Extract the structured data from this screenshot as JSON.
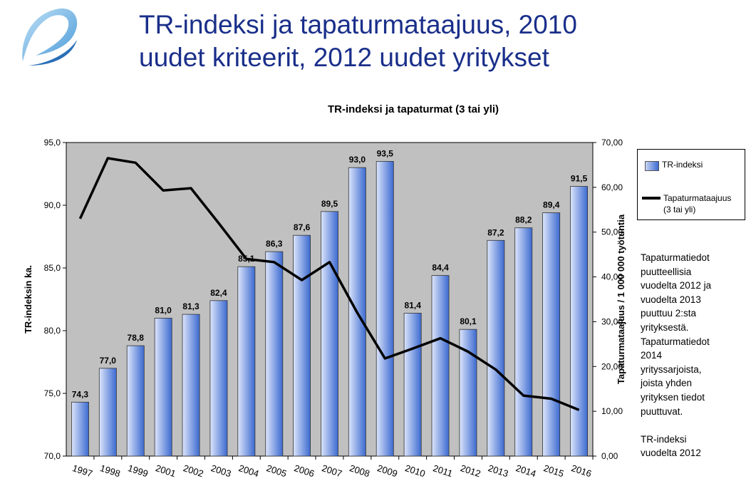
{
  "slide": {
    "title_line1": "TR-indeksi ja tapaturmataajuus, 2010",
    "title_line2": "uudet kriteerit, 2012 uudet yritykset",
    "note": "Tapaturmatiedot\npuutteellisia\nvuodelta  2012 ja\nvuodelta  2013\npuuttuu  2:sta\nyrityksestä.\nTapaturmatiedot\n2014\nyrityssarjoista,\njoista yhden\nyrityksen tiedot\npuuttuvat.\n\nTR-indeksi\nvuodelta  2012"
  },
  "legend": {
    "bar_label": "TR-indeksi",
    "line_label_1": "Tapaturmataajuus",
    "line_label_2": "(3 tai yli)"
  },
  "colors": {
    "title": "#1a2f8a",
    "plot_bg": "#c0c0c0",
    "bar_light": "#dce5fb",
    "bar_dark": "#3c6ad0",
    "line": "#000000"
  },
  "chart_data": {
    "type": "bar",
    "title": "TR-indeksi ja tapaturmat (3 tai yli)",
    "ylabel": "TR-indeksin ka.",
    "y2label": "Tapaturmataajuus / 1 000 000 työtuntia",
    "ylim": [
      70,
      95
    ],
    "y2lim": [
      0,
      70
    ],
    "yticks": [
      "70,0",
      "75,0",
      "80,0",
      "85,0",
      "90,0",
      "95,0"
    ],
    "y2ticks": [
      "0,00",
      "10,00",
      "20,00",
      "30,00",
      "40,00",
      "50,00",
      "60,00",
      "70,00"
    ],
    "categories": [
      "1997",
      "1998",
      "1999",
      "2001",
      "2002",
      "2003",
      "2004",
      "2005",
      "2006",
      "2007",
      "2008",
      "2009",
      "2010",
      "2011",
      "2012",
      "2013",
      "2014",
      "2015",
      "2016"
    ],
    "series": [
      {
        "name": "TR-indeksi",
        "type": "bar",
        "axis": "left",
        "values": [
          74.3,
          77.0,
          78.8,
          81.0,
          81.3,
          82.4,
          85.1,
          86.3,
          87.6,
          89.5,
          93.0,
          93.5,
          81.4,
          84.4,
          80.1,
          87.2,
          88.2,
          89.4,
          91.5
        ],
        "labels": [
          "74,3",
          "77,0",
          "78,8",
          "81,0",
          "81,3",
          "82,4",
          "85,1",
          "86,3",
          "87,6",
          "89,5",
          "93,0",
          "93,5",
          "81,4",
          "84,4",
          "80,1",
          "87,2",
          "88,2",
          "89,4",
          "91,5"
        ]
      },
      {
        "name": "Tapaturmataajuus (3 tai yli)",
        "type": "line",
        "axis": "right",
        "values": [
          53.0,
          66.5,
          65.5,
          59.3,
          59.8,
          52.0,
          44.0,
          43.3,
          39.3,
          43.3,
          32.0,
          21.8,
          24.0,
          26.3,
          23.3,
          19.3,
          13.5,
          12.8,
          10.3
        ]
      }
    ],
    "grid": false,
    "legend_position": "right"
  }
}
